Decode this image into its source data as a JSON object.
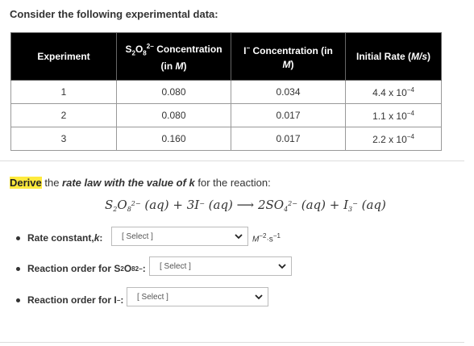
{
  "intro": "Consider the following experimental data:",
  "table": {
    "headers": {
      "experiment": "Experiment",
      "s2o8": {
        "prefix": "S",
        "s1": "2",
        "mid": "O",
        "s2": "8",
        "charge": "2−",
        "suffix": " Concentration",
        "line2": "(in ",
        "unit": "M",
        "end": ")"
      },
      "iodide": {
        "text": "I",
        "charge": "−",
        "suffix": " Concentration (in",
        "unit": "M",
        "end": ")"
      },
      "rate": {
        "text": "Initial Rate (",
        "unit": "M/s",
        "end": ")"
      }
    },
    "rows": [
      {
        "exp": "1",
        "s2o8": "0.080",
        "i": "0.034",
        "rate_base": "4.4 x 10",
        "rate_exp": "−4"
      },
      {
        "exp": "2",
        "s2o8": "0.080",
        "i": "0.017",
        "rate_base": "1.1 x 10",
        "rate_exp": "−4"
      },
      {
        "exp": "3",
        "s2o8": "0.160",
        "i": "0.017",
        "rate_base": "2.2 x 10",
        "rate_exp": "−4"
      }
    ]
  },
  "prompt": {
    "highlight": "Derive",
    "text1": " the ",
    "italic": "rate law with the value of k",
    "text2": " for the reaction:"
  },
  "equation": {
    "lhs1": "S",
    "lhs1_sub": "2",
    "lhs1b": "O",
    "lhs1b_sub": "8",
    "lhs1_sup": "2−",
    "aq1": " (aq) + 3",
    "i": "I",
    "i_sup": "−",
    "aq2": " (aq) ⟶ 2",
    "so": "SO",
    "so_sub": "4",
    "so_sup": "2−",
    "aq3": " (aq) + ",
    "i3": "I",
    "i3_sub": "3",
    "i3_sup": "−",
    "aq4": " (aq)"
  },
  "questions": [
    {
      "label": "Rate constant, ",
      "label_italic": "k",
      "label_end": ":",
      "select": "[ Select ]",
      "units_base": "M",
      "units_exp1": "−2",
      "units_mid": "·s",
      "units_exp2": "−1"
    },
    {
      "label": "Reaction order for S",
      "s1": "2",
      "mid": "O",
      "s2": "8",
      "charge": "2−",
      "end": ":",
      "select": "[ Select ]"
    },
    {
      "label": "Reaction order for I",
      "charge": "−",
      "end": ":",
      "select": "[ Select ]"
    }
  ]
}
